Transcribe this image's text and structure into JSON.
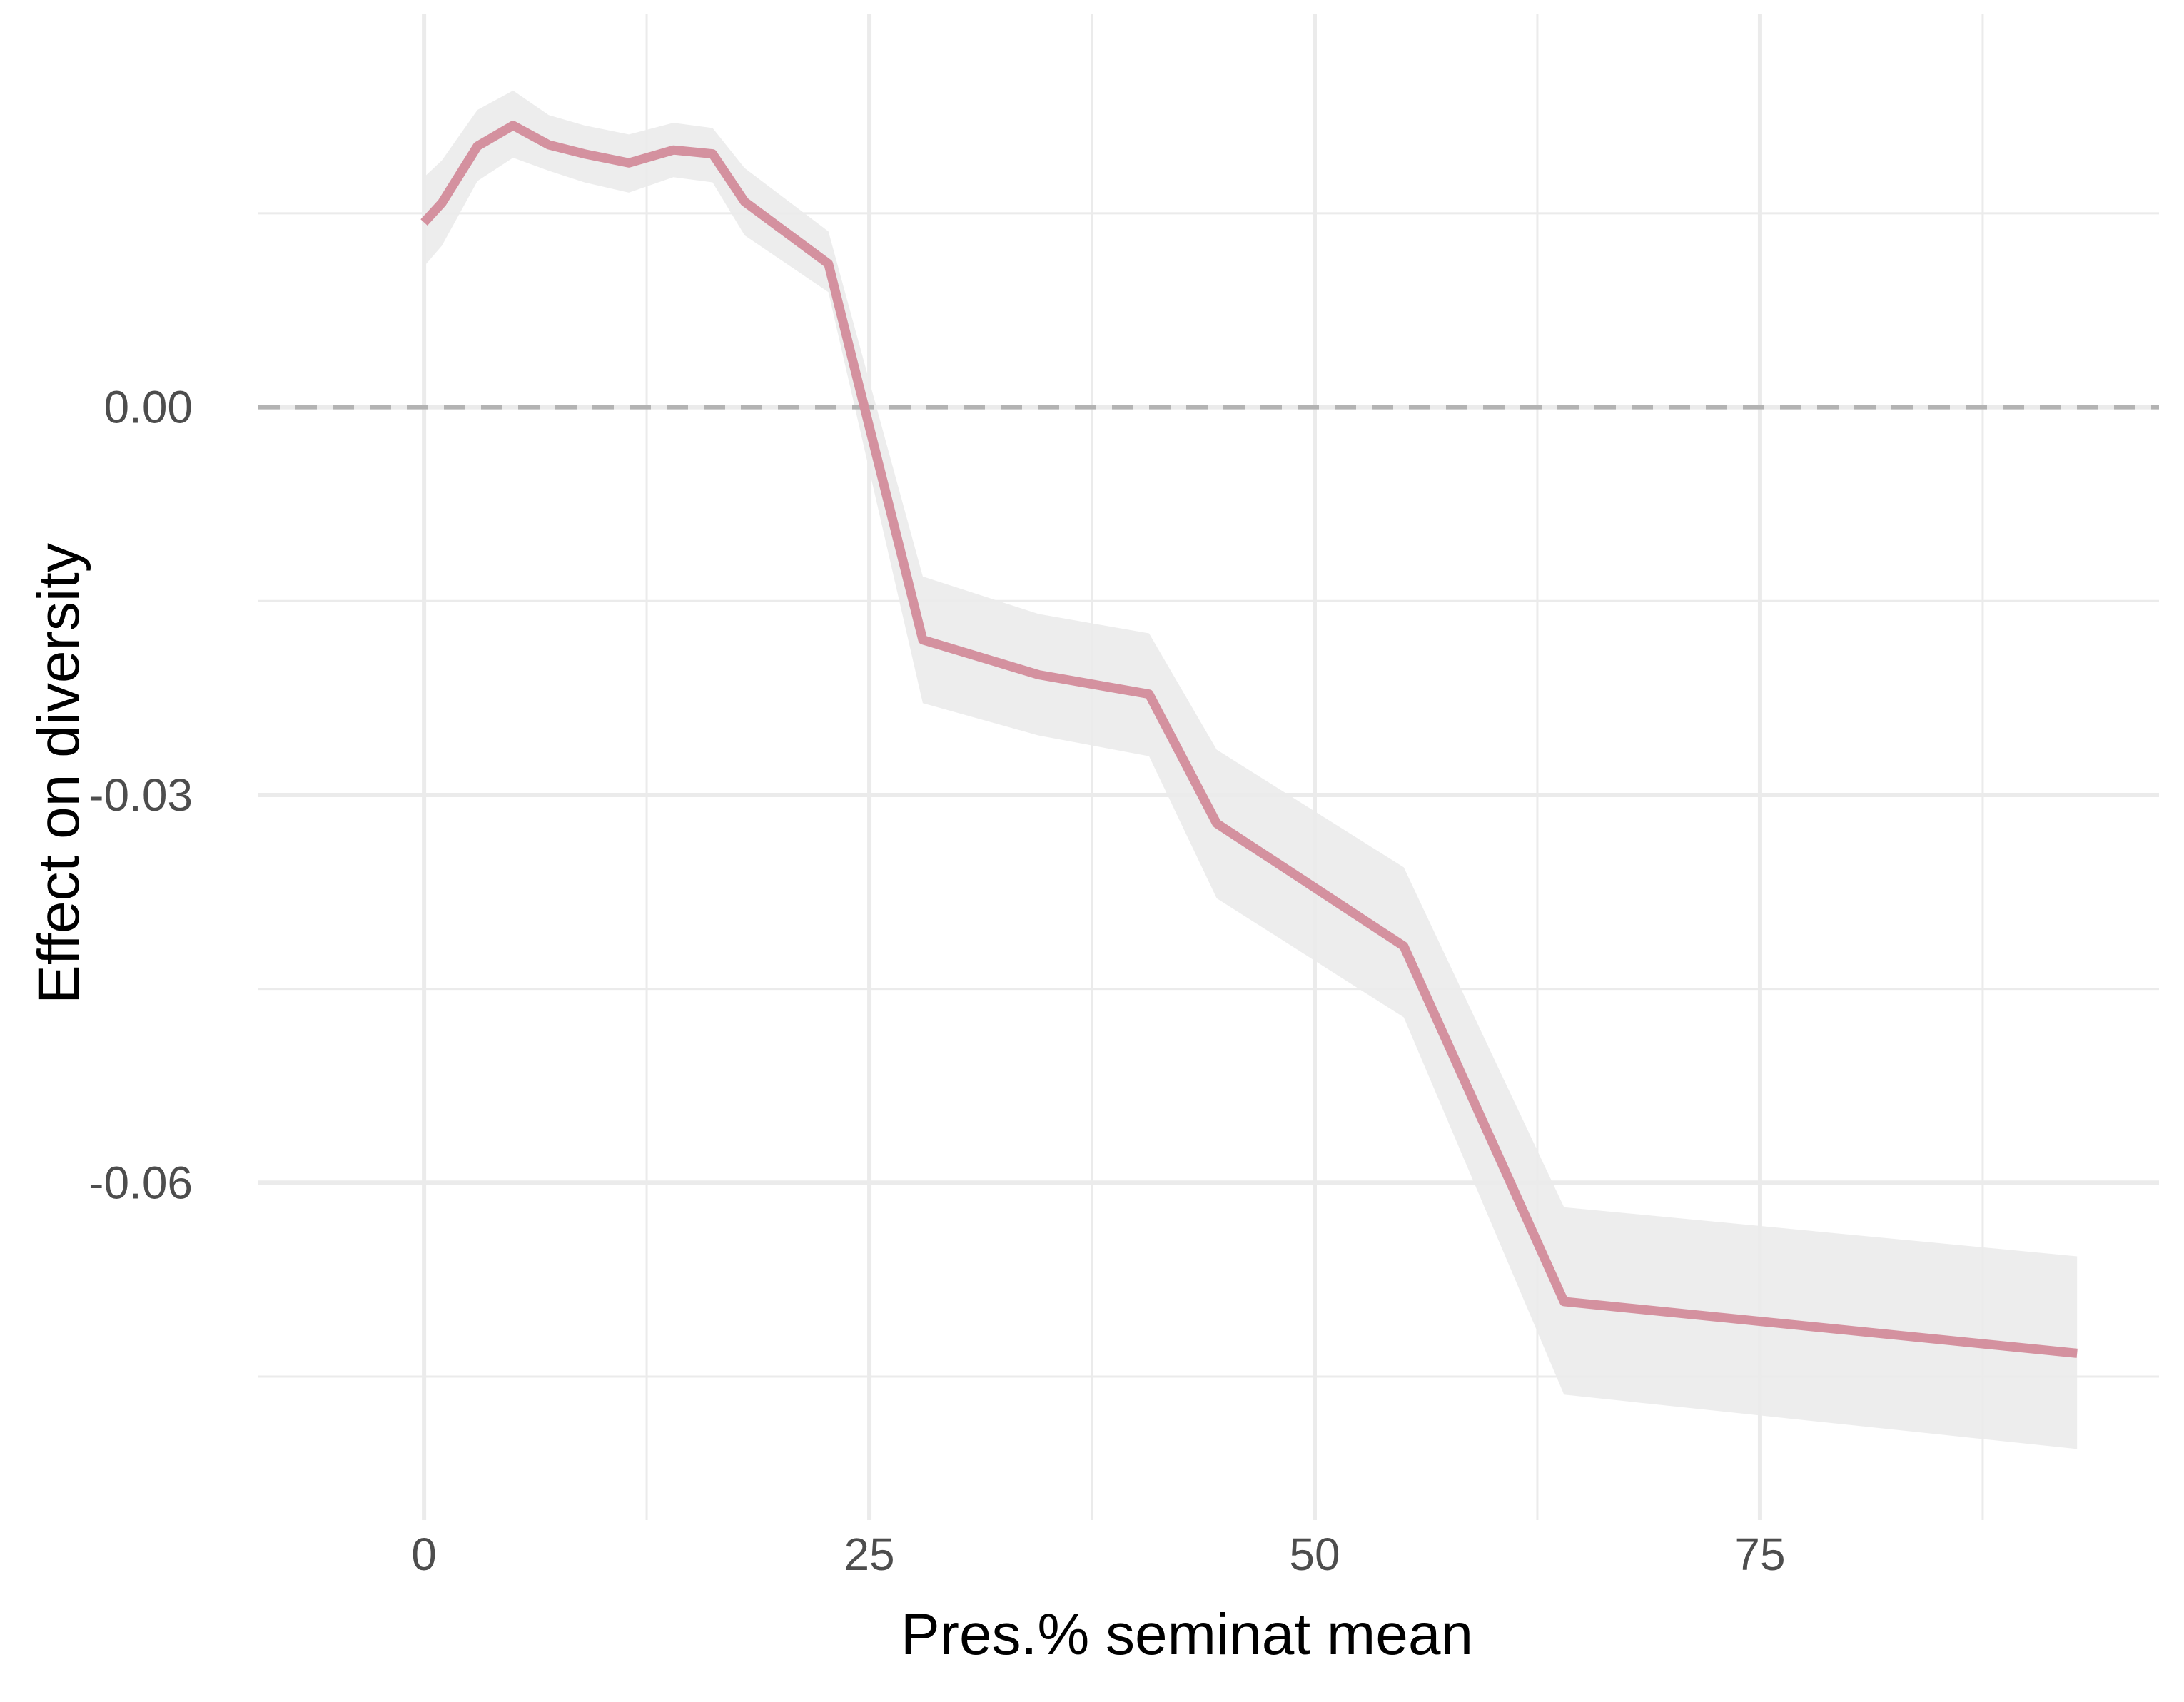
{
  "chart_data": {
    "type": "line",
    "xlabel": "Pres.% seminat mean",
    "ylabel": "Effect on diversity",
    "xlim": [
      -9.3,
      97.4
    ],
    "ylim": [
      -0.0861,
      0.0304
    ],
    "x_ticks": [
      0,
      25,
      50,
      75
    ],
    "x_tick_labels": [
      "0",
      "25",
      "50",
      "75"
    ],
    "x_minor_ticks": [
      12.5,
      37.5,
      62.5,
      87.5
    ],
    "y_ticks": [
      0.0,
      -0.03,
      -0.06
    ],
    "y_tick_labels": [
      "0.00",
      "-0.03",
      "-0.06"
    ],
    "y_minor_ticks": [
      0.015,
      -0.015,
      -0.045,
      -0.075
    ],
    "reference_line": {
      "y": 0,
      "style": "dashed",
      "color": "#b3b3b3"
    },
    "grid": true,
    "legend": "none",
    "line_color": "#d4919f",
    "ribbon_color": "#ebebeb",
    "series": [
      {
        "x": [
          0,
          1,
          3,
          5,
          7,
          9,
          11.5,
          14,
          16.2,
          18,
          22.7,
          28,
          34.5,
          40.7,
          44.5,
          55,
          64,
          92.8
        ],
        "y": [
          0.0143,
          0.0158,
          0.0202,
          0.0218,
          0.0203,
          0.0196,
          0.0189,
          0.0199,
          0.0196,
          0.0159,
          0.0111,
          -0.018,
          -0.0207,
          -0.0222,
          -0.0322,
          -0.0417,
          -0.0692,
          -0.0732
        ],
        "ymin": [
          0.0109,
          0.0125,
          0.0175,
          0.0193,
          0.0183,
          0.0174,
          0.0166,
          0.0178,
          0.0174,
          0.0133,
          0.0089,
          -0.0229,
          -0.0254,
          -0.027,
          -0.038,
          -0.0472,
          -0.0764,
          -0.0806
        ],
        "ymax": [
          0.0178,
          0.0191,
          0.023,
          0.0245,
          0.0226,
          0.0218,
          0.0211,
          0.022,
          0.0216,
          0.0185,
          0.0136,
          -0.0131,
          -0.016,
          -0.0175,
          -0.0265,
          -0.0356,
          -0.0619,
          -0.0657
        ]
      }
    ]
  }
}
